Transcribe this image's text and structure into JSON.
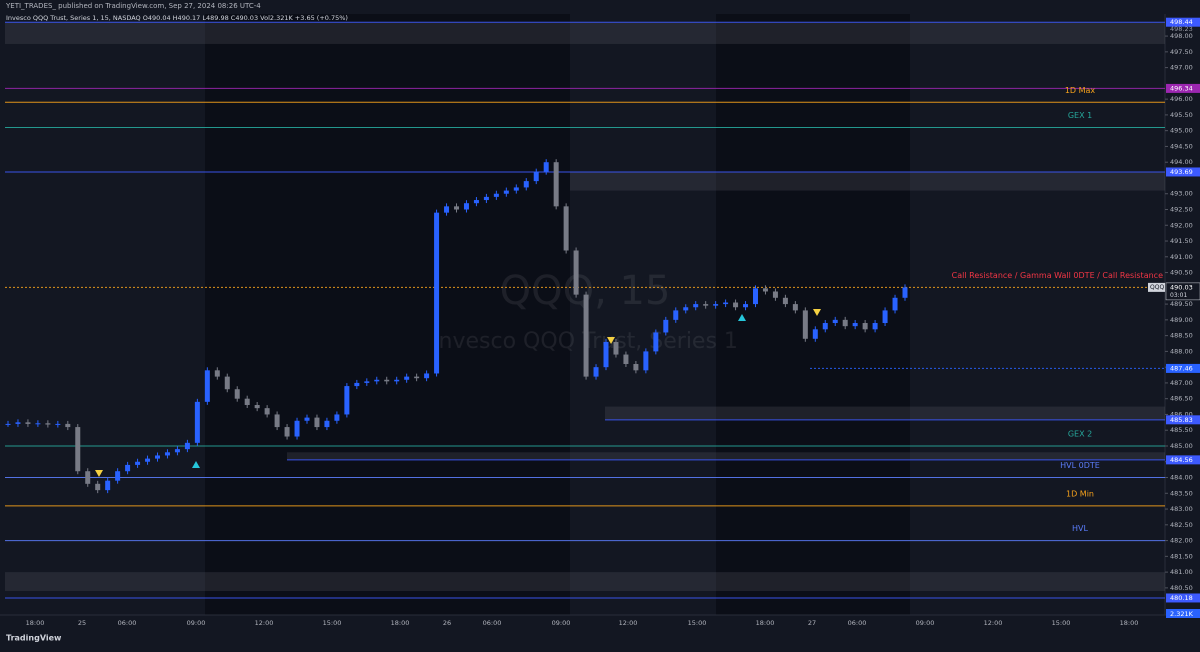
{
  "header": {
    "publisher": "YETI_TRADES_ published on TradingView.com, Sep 27, 2024 08:26 UTC-4",
    "legend": "Invesco QQQ Trust, Series 1, 15, NASDAQ O490.04 H490.17 L489.98 C490.03 Vol2.321K +3.65 (+0.75%)"
  },
  "footer": {
    "brand": "TradingView"
  },
  "chart_data": {
    "type": "candlestick",
    "watermark": "QQQ, 15",
    "watermark_name": "Invesco QQQ Trust, Series 1",
    "up_color": "#2962ff",
    "down_color": "#787b86",
    "ylim": [
      479.64,
      498.7
    ],
    "yticks": [
      {
        "value": 480.5,
        "label": "480.50"
      },
      {
        "value": 481,
        "label": "481.00"
      },
      {
        "value": 481.5,
        "label": "481.50"
      },
      {
        "value": 482,
        "label": "482.00"
      },
      {
        "value": 482.5,
        "label": "482.50"
      },
      {
        "value": 483,
        "label": "483.00"
      },
      {
        "value": 483.5,
        "label": "483.50"
      },
      {
        "value": 484,
        "label": "484.00"
      },
      {
        "value": 484.5,
        "label": "484.50"
      },
      {
        "value": 485,
        "label": "485.00"
      },
      {
        "value": 485.5,
        "label": "485.50"
      },
      {
        "value": 486,
        "label": "486.00"
      },
      {
        "value": 486.5,
        "label": "486.50"
      },
      {
        "value": 487,
        "label": "487.00"
      },
      {
        "value": 487.5,
        "label": "487.50"
      },
      {
        "value": 488,
        "label": "488.00"
      },
      {
        "value": 488.5,
        "label": "488.50"
      },
      {
        "value": 489,
        "label": "489.00"
      },
      {
        "value": 489.5,
        "label": "489.50"
      },
      {
        "value": 490.5,
        "label": "490.50"
      },
      {
        "value": 491,
        "label": "491.00"
      },
      {
        "value": 491.5,
        "label": "491.50"
      },
      {
        "value": 492,
        "label": "492.00"
      },
      {
        "value": 492.5,
        "label": "492.50"
      },
      {
        "value": 493,
        "label": "493.00"
      },
      {
        "value": 494,
        "label": "494.00"
      },
      {
        "value": 494.5,
        "label": "494.50"
      },
      {
        "value": 495,
        "label": "495.00"
      },
      {
        "value": 495.5,
        "label": "495.50"
      },
      {
        "value": 496,
        "label": "496.00"
      },
      {
        "value": 497,
        "label": "497.00"
      },
      {
        "value": 497.5,
        "label": "497.50"
      },
      {
        "value": 498,
        "label": "498.00"
      }
    ],
    "x_labels": [
      "18:00",
      "25",
      "06:00",
      "09:00",
      "12:00",
      "15:00",
      "18:00",
      "26",
      "06:00",
      "09:00",
      "12:00",
      "15:00",
      "18:00",
      "27",
      "06:00",
      "09:00",
      "12:00",
      "15:00",
      "18:00"
    ],
    "closes": [
      485.7,
      485.75,
      485.7,
      485.72,
      485.68,
      485.7,
      485.6,
      484.2,
      483.8,
      483.6,
      483.9,
      484.2,
      484.4,
      484.5,
      484.6,
      484.7,
      484.8,
      484.9,
      485.1,
      486.4,
      487.4,
      487.2,
      486.8,
      486.5,
      486.3,
      486.2,
      486.0,
      485.6,
      485.3,
      485.8,
      485.9,
      485.6,
      485.8,
      486.0,
      486.9,
      487.0,
      487.05,
      487.1,
      487.05,
      487.1,
      487.2,
      487.15,
      487.3,
      492.4,
      492.6,
      492.5,
      492.7,
      492.8,
      492.9,
      493.0,
      493.1,
      493.2,
      493.4,
      493.7,
      494.0,
      492.6,
      491.2,
      489.8,
      487.2,
      487.5,
      488.3,
      487.9,
      487.6,
      487.4,
      488.0,
      488.6,
      489.0,
      489.3,
      489.4,
      489.5,
      489.45,
      489.5,
      489.55,
      489.4,
      489.5,
      490.0,
      489.9,
      489.7,
      489.5,
      489.3,
      488.4,
      488.7,
      488.9,
      489.0,
      488.8,
      488.9,
      488.7,
      488.9,
      489.3,
      489.7,
      490.03
    ],
    "zones": [
      [
        498.44,
        497.75
      ],
      [
        493.69,
        493.1
      ],
      [
        486.25,
        485.83
      ],
      [
        484.8,
        484.56
      ],
      [
        481.0,
        480.4
      ]
    ],
    "levels": [
      {
        "price": 498.44,
        "color": "#3d5afe",
        "marker": true
      },
      {
        "price": 498.23,
        "color": "#9598a1",
        "marker": true,
        "line": false
      },
      {
        "price": 496.34,
        "color": "#9c27b0",
        "marker": true
      },
      {
        "label": "1D Max",
        "price": 495.9,
        "color": "#f7a21b"
      },
      {
        "label": "GEX 1",
        "price": 495.1,
        "color": "#26a69a"
      },
      {
        "price": 493.69,
        "color": "#3d5afe",
        "marker": true
      },
      {
        "label": "Call Resistance /  Gamma Wall 0DTE /  Call Resistance",
        "price": 490.03,
        "color": "#f23645",
        "line_color": "#f7a21b",
        "marker": true,
        "tag": "QQQ",
        "countdown": "03:01"
      },
      {
        "price": 487.46,
        "color": "#2962ff",
        "marker": true,
        "dashed": true
      },
      {
        "price": 485.83,
        "color": "#3d5afe",
        "marker": true
      },
      {
        "label": "GEX 2",
        "price": 485.0,
        "color": "#26a69a"
      },
      {
        "price": 484.56,
        "color": "#3d5afe",
        "marker": true
      },
      {
        "label": "HVL 0DTE",
        "price": 484.0,
        "color": "#5b7cfa"
      },
      {
        "label": "1D Min",
        "price": 483.1,
        "color": "#f7a21b"
      },
      {
        "label": "HVL",
        "price": 482.0,
        "color": "#5b7cfa"
      },
      {
        "price": 480.18,
        "color": "#3d5afe",
        "marker": true
      }
    ],
    "volume_label": "2.321K"
  }
}
